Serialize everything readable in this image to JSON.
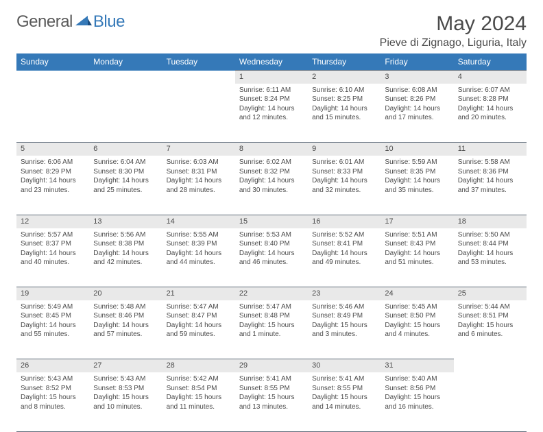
{
  "brand": {
    "general": "General",
    "blue": "Blue"
  },
  "colors": {
    "header_bg": "#3579b8",
    "header_text": "#ffffff",
    "daynum_bg": "#e9e9e9",
    "border": "#5e6b79",
    "text": "#4a4a4a",
    "logo_gray": "#5a5a5a",
    "logo_blue": "#3579b8"
  },
  "title": "May 2024",
  "location": "Pieve di Zignago, Liguria, Italy",
  "weekdays": [
    "Sunday",
    "Monday",
    "Tuesday",
    "Wednesday",
    "Thursday",
    "Friday",
    "Saturday"
  ],
  "weeks": [
    [
      {
        "empty": true
      },
      {
        "empty": true
      },
      {
        "empty": true
      },
      {
        "day": "1",
        "sunrise": "Sunrise: 6:11 AM",
        "sunset": "Sunset: 8:24 PM",
        "daylight1": "Daylight: 14 hours",
        "daylight2": "and 12 minutes."
      },
      {
        "day": "2",
        "sunrise": "Sunrise: 6:10 AM",
        "sunset": "Sunset: 8:25 PM",
        "daylight1": "Daylight: 14 hours",
        "daylight2": "and 15 minutes."
      },
      {
        "day": "3",
        "sunrise": "Sunrise: 6:08 AM",
        "sunset": "Sunset: 8:26 PM",
        "daylight1": "Daylight: 14 hours",
        "daylight2": "and 17 minutes."
      },
      {
        "day": "4",
        "sunrise": "Sunrise: 6:07 AM",
        "sunset": "Sunset: 8:28 PM",
        "daylight1": "Daylight: 14 hours",
        "daylight2": "and 20 minutes."
      }
    ],
    [
      {
        "day": "5",
        "sunrise": "Sunrise: 6:06 AM",
        "sunset": "Sunset: 8:29 PM",
        "daylight1": "Daylight: 14 hours",
        "daylight2": "and 23 minutes."
      },
      {
        "day": "6",
        "sunrise": "Sunrise: 6:04 AM",
        "sunset": "Sunset: 8:30 PM",
        "daylight1": "Daylight: 14 hours",
        "daylight2": "and 25 minutes."
      },
      {
        "day": "7",
        "sunrise": "Sunrise: 6:03 AM",
        "sunset": "Sunset: 8:31 PM",
        "daylight1": "Daylight: 14 hours",
        "daylight2": "and 28 minutes."
      },
      {
        "day": "8",
        "sunrise": "Sunrise: 6:02 AM",
        "sunset": "Sunset: 8:32 PM",
        "daylight1": "Daylight: 14 hours",
        "daylight2": "and 30 minutes."
      },
      {
        "day": "9",
        "sunrise": "Sunrise: 6:01 AM",
        "sunset": "Sunset: 8:33 PM",
        "daylight1": "Daylight: 14 hours",
        "daylight2": "and 32 minutes."
      },
      {
        "day": "10",
        "sunrise": "Sunrise: 5:59 AM",
        "sunset": "Sunset: 8:35 PM",
        "daylight1": "Daylight: 14 hours",
        "daylight2": "and 35 minutes."
      },
      {
        "day": "11",
        "sunrise": "Sunrise: 5:58 AM",
        "sunset": "Sunset: 8:36 PM",
        "daylight1": "Daylight: 14 hours",
        "daylight2": "and 37 minutes."
      }
    ],
    [
      {
        "day": "12",
        "sunrise": "Sunrise: 5:57 AM",
        "sunset": "Sunset: 8:37 PM",
        "daylight1": "Daylight: 14 hours",
        "daylight2": "and 40 minutes."
      },
      {
        "day": "13",
        "sunrise": "Sunrise: 5:56 AM",
        "sunset": "Sunset: 8:38 PM",
        "daylight1": "Daylight: 14 hours",
        "daylight2": "and 42 minutes."
      },
      {
        "day": "14",
        "sunrise": "Sunrise: 5:55 AM",
        "sunset": "Sunset: 8:39 PM",
        "daylight1": "Daylight: 14 hours",
        "daylight2": "and 44 minutes."
      },
      {
        "day": "15",
        "sunrise": "Sunrise: 5:53 AM",
        "sunset": "Sunset: 8:40 PM",
        "daylight1": "Daylight: 14 hours",
        "daylight2": "and 46 minutes."
      },
      {
        "day": "16",
        "sunrise": "Sunrise: 5:52 AM",
        "sunset": "Sunset: 8:41 PM",
        "daylight1": "Daylight: 14 hours",
        "daylight2": "and 49 minutes."
      },
      {
        "day": "17",
        "sunrise": "Sunrise: 5:51 AM",
        "sunset": "Sunset: 8:43 PM",
        "daylight1": "Daylight: 14 hours",
        "daylight2": "and 51 minutes."
      },
      {
        "day": "18",
        "sunrise": "Sunrise: 5:50 AM",
        "sunset": "Sunset: 8:44 PM",
        "daylight1": "Daylight: 14 hours",
        "daylight2": "and 53 minutes."
      }
    ],
    [
      {
        "day": "19",
        "sunrise": "Sunrise: 5:49 AM",
        "sunset": "Sunset: 8:45 PM",
        "daylight1": "Daylight: 14 hours",
        "daylight2": "and 55 minutes."
      },
      {
        "day": "20",
        "sunrise": "Sunrise: 5:48 AM",
        "sunset": "Sunset: 8:46 PM",
        "daylight1": "Daylight: 14 hours",
        "daylight2": "and 57 minutes."
      },
      {
        "day": "21",
        "sunrise": "Sunrise: 5:47 AM",
        "sunset": "Sunset: 8:47 PM",
        "daylight1": "Daylight: 14 hours",
        "daylight2": "and 59 minutes."
      },
      {
        "day": "22",
        "sunrise": "Sunrise: 5:47 AM",
        "sunset": "Sunset: 8:48 PM",
        "daylight1": "Daylight: 15 hours",
        "daylight2": "and 1 minute."
      },
      {
        "day": "23",
        "sunrise": "Sunrise: 5:46 AM",
        "sunset": "Sunset: 8:49 PM",
        "daylight1": "Daylight: 15 hours",
        "daylight2": "and 3 minutes."
      },
      {
        "day": "24",
        "sunrise": "Sunrise: 5:45 AM",
        "sunset": "Sunset: 8:50 PM",
        "daylight1": "Daylight: 15 hours",
        "daylight2": "and 4 minutes."
      },
      {
        "day": "25",
        "sunrise": "Sunrise: 5:44 AM",
        "sunset": "Sunset: 8:51 PM",
        "daylight1": "Daylight: 15 hours",
        "daylight2": "and 6 minutes."
      }
    ],
    [
      {
        "day": "26",
        "sunrise": "Sunrise: 5:43 AM",
        "sunset": "Sunset: 8:52 PM",
        "daylight1": "Daylight: 15 hours",
        "daylight2": "and 8 minutes."
      },
      {
        "day": "27",
        "sunrise": "Sunrise: 5:43 AM",
        "sunset": "Sunset: 8:53 PM",
        "daylight1": "Daylight: 15 hours",
        "daylight2": "and 10 minutes."
      },
      {
        "day": "28",
        "sunrise": "Sunrise: 5:42 AM",
        "sunset": "Sunset: 8:54 PM",
        "daylight1": "Daylight: 15 hours",
        "daylight2": "and 11 minutes."
      },
      {
        "day": "29",
        "sunrise": "Sunrise: 5:41 AM",
        "sunset": "Sunset: 8:55 PM",
        "daylight1": "Daylight: 15 hours",
        "daylight2": "and 13 minutes."
      },
      {
        "day": "30",
        "sunrise": "Sunrise: 5:41 AM",
        "sunset": "Sunset: 8:55 PM",
        "daylight1": "Daylight: 15 hours",
        "daylight2": "and 14 minutes."
      },
      {
        "day": "31",
        "sunrise": "Sunrise: 5:40 AM",
        "sunset": "Sunset: 8:56 PM",
        "daylight1": "Daylight: 15 hours",
        "daylight2": "and 16 minutes."
      },
      {
        "empty": true
      }
    ]
  ]
}
